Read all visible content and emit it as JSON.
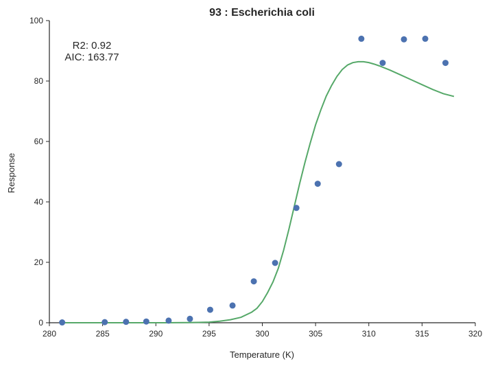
{
  "chart_data": {
    "type": "scatter",
    "title": "93 : Escherichia coli",
    "xlabel": "Temperature (K)",
    "ylabel": "Response",
    "xlim": [
      280,
      320
    ],
    "ylim": [
      0,
      100
    ],
    "xticks": [
      280,
      285,
      290,
      295,
      300,
      305,
      310,
      315,
      320
    ],
    "yticks": [
      0,
      20,
      40,
      60,
      80,
      100
    ],
    "grid": false,
    "annotations": {
      "r2": "R2: 0.92",
      "aic": "AIC: 163.77"
    },
    "series": [
      {
        "type": "scatter",
        "color": "#4c72b0",
        "x": [
          281.2,
          285.2,
          287.2,
          289.1,
          291.2,
          293.2,
          295.1,
          297.2,
          299.2,
          301.2,
          303.2,
          305.2,
          307.2,
          309.3,
          311.3,
          313.3,
          315.3,
          317.2
        ],
        "y": [
          0.1,
          0.2,
          0.3,
          0.4,
          0.7,
          1.3,
          4.3,
          5.7,
          13.7,
          19.8,
          38.0,
          46.0,
          52.5,
          94.0,
          86.0,
          93.8,
          94.0,
          86.0
        ]
      },
      {
        "type": "line",
        "color": "#55a868",
        "x": [
          281.0,
          283.0,
          285.0,
          287.0,
          289.0,
          291.0,
          293.0,
          294.0,
          295.0,
          296.0,
          297.0,
          298.0,
          299.0,
          299.5,
          300.0,
          300.5,
          301.0,
          301.5,
          302.0,
          302.5,
          303.0,
          303.5,
          304.0,
          304.5,
          305.0,
          305.5,
          306.0,
          306.5,
          307.0,
          307.5,
          308.0,
          308.5,
          309.0,
          309.5,
          310.0,
          310.5,
          311.0,
          312.0,
          313.0,
          314.0,
          315.0,
          316.0,
          317.0,
          318.0
        ],
        "y": [
          0.0,
          0.0,
          0.0,
          0.0,
          0.0,
          0.0,
          0.05,
          0.1,
          0.2,
          0.5,
          1.0,
          1.8,
          3.5,
          4.8,
          7.0,
          10.0,
          13.5,
          18.0,
          24.0,
          31.0,
          38.5,
          46.0,
          53.0,
          59.5,
          65.5,
          70.5,
          75.0,
          78.5,
          81.5,
          83.8,
          85.3,
          86.1,
          86.4,
          86.4,
          86.1,
          85.6,
          85.0,
          83.6,
          82.0,
          80.4,
          78.8,
          77.2,
          75.8,
          74.9
        ]
      }
    ]
  }
}
